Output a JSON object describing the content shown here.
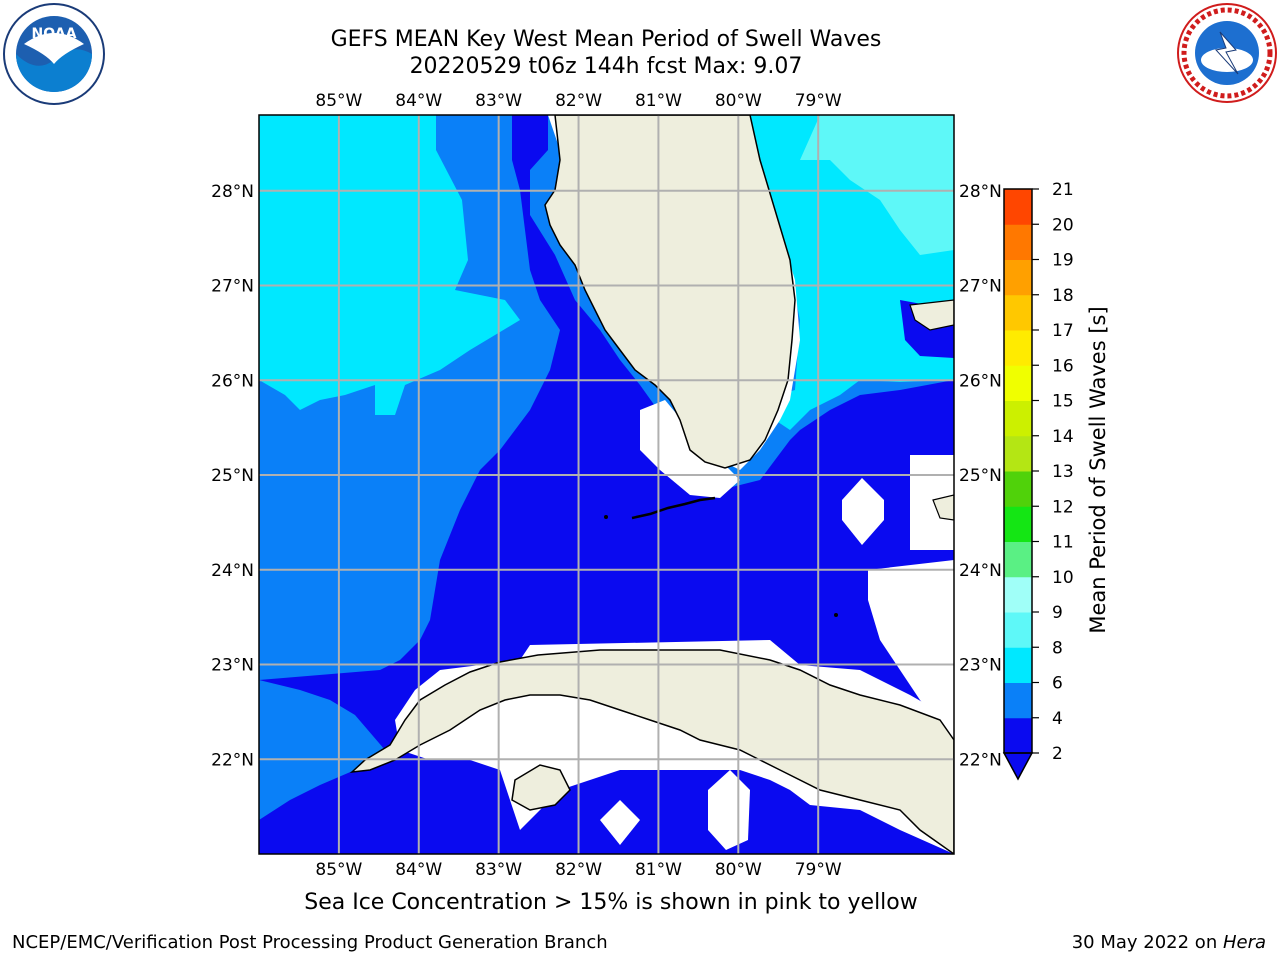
{
  "title_line1": "GEFS MEAN Key West Mean Period of Swell Waves",
  "title_line2": "20220529 t06z 144h fcst   Max: 9.07",
  "chart_data": {
    "type": "heatmap",
    "variable": "Mean Period of Swell Waves",
    "units": "s",
    "max_value": 9.07,
    "lon_labels": [
      "85°W",
      "84°W",
      "83°W",
      "82°W",
      "81°W",
      "80°W",
      "79°W"
    ],
    "lat_labels": [
      "28°N",
      "27°N",
      "26°N",
      "25°N",
      "24°N",
      "23°N",
      "22°N"
    ],
    "lon_range": [
      -86,
      -77.3
    ],
    "lat_range": [
      21,
      28.8
    ],
    "grid": true,
    "colorbar": {
      "label": "Mean Period of Swell Waves [s]",
      "ticks": [
        "2",
        "4",
        "6",
        "8",
        "9",
        "10",
        "11",
        "12",
        "13",
        "14",
        "15",
        "16",
        "17",
        "18",
        "19",
        "20",
        "21"
      ],
      "colors": [
        "#0a0af0",
        "#0a80f8",
        "#00e8ff",
        "#5ef8f8",
        "#a0fff8",
        "#5af084",
        "#14e614",
        "#50d20a",
        "#b4e614",
        "#ccf000",
        "#f0ff00",
        "#ffeb00",
        "#ffc800",
        "#ffa000",
        "#ff7800",
        "#ff4600",
        "#ff0000"
      ],
      "extend": "min"
    }
  },
  "note": "Sea Ice Concentration > 15% is shown in pink to yellow",
  "footer_left": "NCEP/EMC/Verification Post Processing Product Generation Branch",
  "footer_date": "30 May 2022 on ",
  "footer_machine": "Hera",
  "logos": {
    "left": "noaa-logo",
    "right": "nws-logo"
  }
}
